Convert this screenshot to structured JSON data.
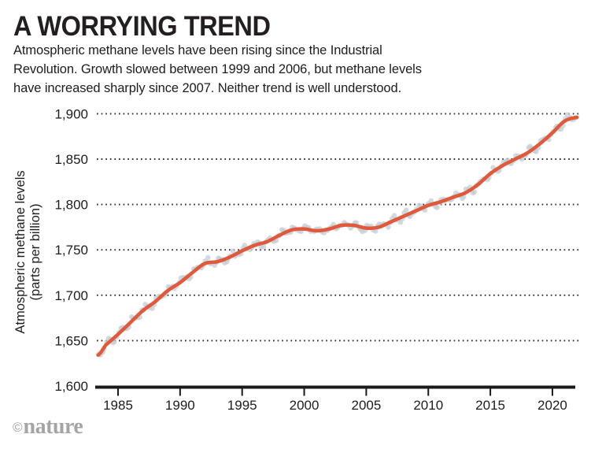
{
  "header": {
    "title": "A WORRYING TREND",
    "description": "Atmospheric methane levels have been rising since the Industrial Revolution. Growth slowed between 1999 and 2006, but methane levels have increased sharply since 2007. Neither trend is well understood."
  },
  "footer": {
    "copyright": "©",
    "brand": "nature"
  },
  "colors": {
    "accent_line": "#e0593b",
    "scatter_dot": "#c4cdd6",
    "axis": "#1a1a1a",
    "gridline": "#2e2e2e",
    "text": "#1d1d1d",
    "logo": "#a5a5a5"
  },
  "chart_data": {
    "type": "scatter",
    "title": "A WORRYING TREND",
    "ylabel_line1": "Atmospheric methane levels",
    "ylabel_line2": "(parts per billion)",
    "xlabel": "",
    "xlim": [
      1983.3,
      2022.4
    ],
    "ylim": [
      1600,
      1900
    ],
    "grid": "dotted-horizontal",
    "legend_position": "none",
    "x_ticks": [
      {
        "value": 1985,
        "label": "1985"
      },
      {
        "value": 1990,
        "label": "1990"
      },
      {
        "value": 1995,
        "label": "1995"
      },
      {
        "value": 2000,
        "label": "2000"
      },
      {
        "value": 2005,
        "label": "2005"
      },
      {
        "value": 2010,
        "label": "2010"
      },
      {
        "value": 2015,
        "label": "2015"
      },
      {
        "value": 2020,
        "label": "2020"
      }
    ],
    "y_ticks": [
      {
        "value": 1600,
        "label": "1,600"
      },
      {
        "value": 1650,
        "label": "1,650"
      },
      {
        "value": 1700,
        "label": "1,700"
      },
      {
        "value": 1750,
        "label": "1,750"
      },
      {
        "value": 1800,
        "label": "1,800"
      },
      {
        "value": 1850,
        "label": "1,850"
      },
      {
        "value": 1900,
        "label": "1,900"
      }
    ],
    "series": [
      {
        "name": "trend-line",
        "type": "line",
        "color": "#e0593b",
        "stroke_width": 4.5,
        "x": [
          1983.4,
          1984,
          1985,
          1986,
          1987,
          1988,
          1989,
          1990,
          1991,
          1992,
          1993,
          1994,
          1995,
          1996,
          1997,
          1998,
          1999,
          2000,
          2001,
          2002,
          2003,
          2004,
          2005,
          2006,
          2007,
          2008,
          2009,
          2010,
          2011,
          2012,
          2013,
          2014,
          2015,
          2016,
          2017,
          2018,
          2019,
          2020,
          2021,
          2022
        ],
        "values": [
          1634,
          1645,
          1657,
          1670,
          1683,
          1693,
          1705,
          1714,
          1725,
          1735,
          1737,
          1742,
          1749,
          1755,
          1759,
          1766,
          1772,
          1773,
          1771,
          1773,
          1777,
          1777,
          1774,
          1775,
          1781,
          1787,
          1793,
          1799,
          1803,
          1808,
          1813,
          1822,
          1834,
          1843,
          1850,
          1857,
          1867,
          1879,
          1892,
          1896
        ]
      },
      {
        "name": "monthly-observations",
        "type": "scatter",
        "color": "#c4cdd6",
        "dot_radius": 3.3,
        "opacity": 0.75,
        "start": 1983.4,
        "end": 2022.0,
        "points_per_year": 6,
        "seasonal_amplitude": 3.4,
        "noise_amplitude": 2.3,
        "seed": 11
      }
    ]
  }
}
